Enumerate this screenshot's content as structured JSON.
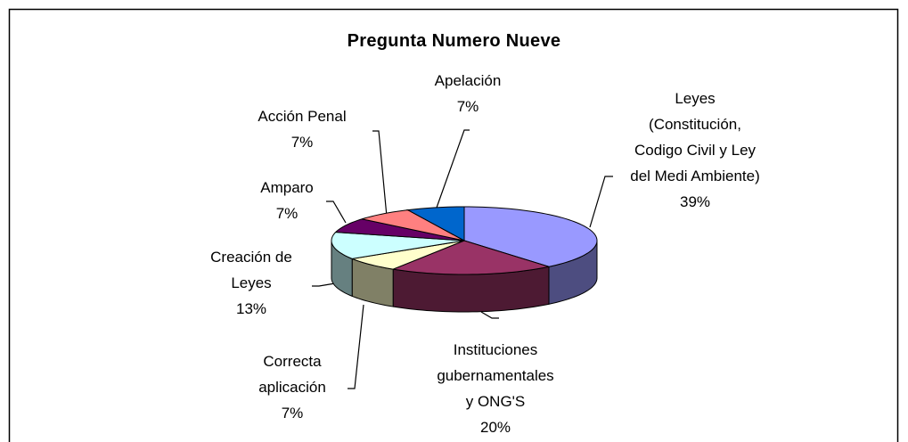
{
  "chart_data": {
    "type": "pie",
    "title": "Pregunta Numero Nueve",
    "categories": [
      "Leyes (Constitución, Codigo Civil y Ley del Medi Ambiente)",
      "Instituciones gubernamentales y ONG'S",
      "Correcta aplicación",
      "Creación de Leyes",
      "Amparo",
      "Acción Penal",
      "Apelación"
    ],
    "values": [
      39,
      20,
      7,
      13,
      7,
      7,
      7
    ],
    "value_labels": [
      "39%",
      "20%",
      "7%",
      "13%",
      "7%",
      "7%",
      "7%"
    ],
    "colors": [
      "#9999ff",
      "#993366",
      "#ffffcc",
      "#ccffff",
      "#660066",
      "#ff8080",
      "#0066cc"
    ]
  }
}
